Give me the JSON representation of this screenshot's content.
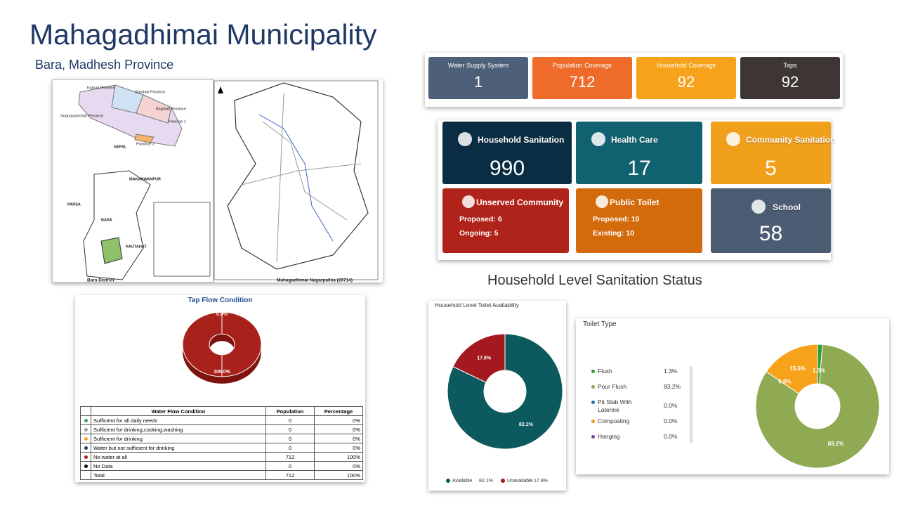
{
  "header": {
    "title": "Mahagadhimai Municipality",
    "subtitle": "Bara, Madhesh Province"
  },
  "map": {
    "labels": [
      "Karnali Province",
      "Gandaki Province",
      "Bagmati Province",
      "Sudurpashchim Province",
      "Province 1",
      "Province 2",
      "NEPAL",
      "MAKANWANPUR",
      "PARSA",
      "BARA",
      "RAUTAHAT",
      "Bara District",
      "Mahagadhimai Nagarpalika (20714)"
    ]
  },
  "summary_tiles": [
    {
      "label": "Water Supply System",
      "value": 1,
      "color": "#4e6079"
    },
    {
      "label": "Population Coverage",
      "value": 712,
      "color": "#ee6b2b"
    },
    {
      "label": "Household Coverage",
      "value": 92,
      "color": "#f7a21b"
    },
    {
      "label": "Taps",
      "value": 92,
      "color": "#3e3634"
    }
  ],
  "sanitation_cards": [
    {
      "label": "Household Sanitation",
      "value": 990,
      "color": "#0b2d43"
    },
    {
      "label": "Health Care",
      "value": 17,
      "color": "#116270"
    },
    {
      "label": "Community Sanitation",
      "value": 5,
      "color": "#f1a01c"
    },
    {
      "label": "School",
      "value": 58,
      "color": "#4c5d73"
    }
  ],
  "status_cards": [
    {
      "label": "Unserved Community",
      "color": "#b0231a",
      "items": [
        {
          "label": "Proposed:",
          "value": 6
        },
        {
          "label": "Ongoing:",
          "value": 5
        }
      ]
    },
    {
      "label": "Public Toilet",
      "color": "#d36a0c",
      "items": [
        {
          "label": "Proposed:",
          "value": 10
        },
        {
          "label": "Existing:",
          "value": 10
        }
      ]
    }
  ],
  "section_heading": "Household Level Sanitation Status",
  "tap_flow": {
    "title": "Tap Flow Condition",
    "chart": {
      "type": "pie",
      "values": [
        0,
        100
      ],
      "value_labels": [
        "0.0%",
        "100.0%"
      ],
      "colors": [
        "#3aa655",
        "#a8211a"
      ]
    },
    "table": {
      "columns": [
        "Water Flow Condition",
        "Population",
        "Percentage"
      ],
      "rows": [
        {
          "color": "#3aa655",
          "name": "Sufficient for all daily needs",
          "population": 0,
          "percentage": "0%"
        },
        {
          "color": "#9e9e9e",
          "name": "Sufficient for drinking,cooking,washing",
          "population": 0,
          "percentage": "0%"
        },
        {
          "color": "#f5a623",
          "name": "Sufficient for drinking",
          "population": 0,
          "percentage": "0%"
        },
        {
          "color": "#1f3b5a",
          "name": "Water but not sufficient for drinking",
          "population": 0,
          "percentage": "0%"
        },
        {
          "color": "#a8211a",
          "name": "No water at all",
          "population": 712,
          "percentage": "100%"
        },
        {
          "color": "#000000",
          "name": "No Data",
          "population": 0,
          "percentage": "0%"
        }
      ],
      "total": {
        "name": "Total",
        "population": 712,
        "percentage": "100%"
      }
    }
  },
  "toilet_availability": {
    "type": "pie",
    "title": "Household Level Toilet Availability",
    "categories": [
      "Available",
      "Unavailable"
    ],
    "values": [
      82.1,
      17.9
    ],
    "value_labels": [
      "82.1%",
      "17.9%"
    ],
    "colors": [
      "#0d5a5e",
      "#a4191f"
    ]
  },
  "toilet_type": {
    "type": "pie",
    "title": "Toilet Type",
    "categories": [
      "Flush",
      "Pour Flush",
      "Pit Slab With Laterine",
      "Composting",
      "Hanging",
      null
    ],
    "values": [
      1.3,
      83.2,
      0,
      0,
      0,
      15.6
    ],
    "value_labels": [
      "1.3%",
      "83.2%",
      "0.0%",
      "0.0%",
      "0.0%",
      "15.6%"
    ],
    "colors": [
      "#2e9e3a",
      "#8faa52",
      "#1f6fbf",
      "#f7941d",
      "#7b3fa0",
      "#f7a21b"
    ]
  }
}
